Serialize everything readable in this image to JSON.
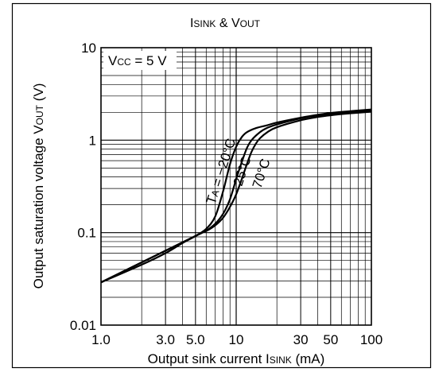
{
  "chart_data": {
    "type": "line",
    "title": {
      "main": "I",
      "sub1": "SINK",
      "mid": " & V",
      "sub2": "OUT"
    },
    "xlabel": {
      "main": "Output sink current I",
      "sub": "SINK",
      "end": " (mA)"
    },
    "ylabel": {
      "main": "Output saturation voltage V",
      "sub": "OUT",
      "end": " (V)"
    },
    "x_scale": "log",
    "y_scale": "log",
    "xlim": [
      1.0,
      100
    ],
    "ylim": [
      0.01,
      10
    ],
    "grid": true,
    "x_ticks": [
      {
        "value": 1.0,
        "label": "1.0"
      },
      {
        "value": 3.0,
        "label": "3.0"
      },
      {
        "value": 5.0,
        "label": "5.0"
      },
      {
        "value": 10,
        "label": "10"
      },
      {
        "value": 30,
        "label": "30"
      },
      {
        "value": 50,
        "label": "50"
      },
      {
        "value": 100,
        "label": "100"
      }
    ],
    "y_ticks": [
      {
        "value": 0.01,
        "label": "0.01"
      },
      {
        "value": 0.1,
        "label": "0.1"
      },
      {
        "value": 1,
        "label": "1"
      },
      {
        "value": 10,
        "label": "10"
      }
    ],
    "condition": {
      "main": "V",
      "sub": "CC",
      "end": " = 5 V"
    },
    "temperature_prefix": {
      "main": "T",
      "sub": "A",
      "end": " = "
    },
    "series": [
      {
        "name": "−20°C",
        "x": [
          1.0,
          2.0,
          3.0,
          4.0,
          5.0,
          6.0,
          7.0,
          8.0,
          9.0,
          10.0,
          11.0,
          12.0,
          14.0,
          17.0,
          20.0,
          30.0,
          40.0,
          50.0,
          70.0,
          100.0
        ],
        "y": [
          0.029,
          0.045,
          0.06,
          0.077,
          0.092,
          0.11,
          0.15,
          0.28,
          0.55,
          0.85,
          1.08,
          1.22,
          1.35,
          1.45,
          1.55,
          1.75,
          1.88,
          1.97,
          2.06,
          2.15
        ]
      },
      {
        "name": "25°C",
        "x": [
          1.0,
          5.0,
          6.0,
          7.0,
          8.0,
          9.0,
          10.0,
          11.0,
          12.0,
          13.0,
          15.0,
          17.0,
          20.0,
          30.0,
          40.0,
          50.0,
          70.0,
          100.0
        ],
        "y": [
          0.029,
          0.092,
          0.105,
          0.125,
          0.16,
          0.23,
          0.38,
          0.58,
          0.82,
          1.0,
          1.22,
          1.36,
          1.48,
          1.72,
          1.85,
          1.93,
          2.02,
          2.1
        ]
      },
      {
        "name": "70°C",
        "x": [
          1.0,
          5.0,
          6.0,
          7.0,
          8.0,
          9.0,
          10.0,
          11.0,
          12.0,
          13.0,
          14.0,
          15.0,
          17.0,
          20.0,
          30.0,
          40.0,
          50.0,
          70.0,
          100.0
        ],
        "y": [
          0.029,
          0.092,
          0.104,
          0.12,
          0.145,
          0.19,
          0.26,
          0.38,
          0.55,
          0.75,
          0.92,
          1.05,
          1.22,
          1.38,
          1.64,
          1.78,
          1.86,
          1.95,
          2.03
        ]
      }
    ]
  }
}
